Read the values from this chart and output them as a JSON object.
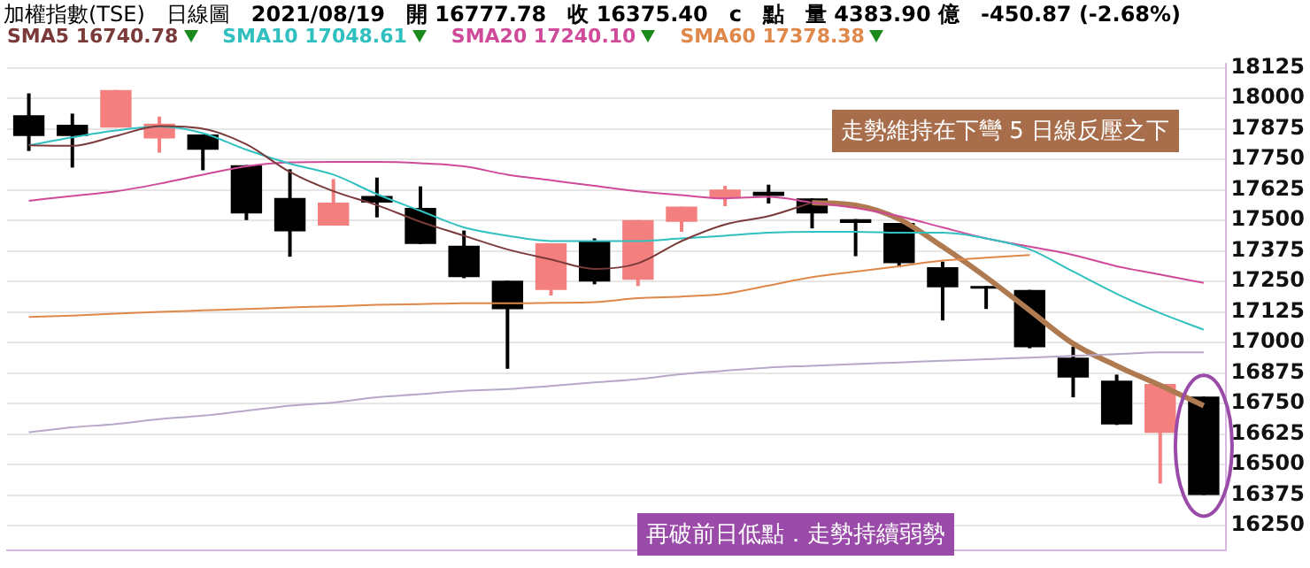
{
  "chart_data": {
    "type": "candlestick",
    "title": "加權指數(TSE)",
    "annotations": [
      "日線圖",
      "2021/08/19",
      "開 16777.78",
      "收 16375.40",
      "c",
      "點",
      "量 4383.90 億",
      "-450.87 (-2.68%)",
      "走勢維持在下彎 5 日線反壓之下",
      "再破前日低點．走勢持續弱勢"
    ],
    "categories": [
      null,
      null,
      null,
      null,
      null,
      null,
      null,
      null,
      null,
      null,
      null,
      null,
      null,
      null,
      null,
      null,
      null,
      null,
      null,
      null,
      null,
      null,
      null,
      null,
      null,
      null,
      null,
      null
    ],
    "ohlc": [
      [
        17930,
        18020,
        17784,
        17845
      ],
      [
        17891,
        17937,
        17716,
        17845
      ],
      [
        17880,
        18034,
        17880,
        18034
      ],
      [
        17835,
        17925,
        17777,
        17896
      ],
      [
        17852,
        17852,
        17705,
        17789
      ],
      [
        17726,
        17726,
        17501,
        17528
      ],
      [
        17592,
        17709,
        17351,
        17455
      ],
      [
        17478,
        17669,
        17478,
        17573
      ],
      [
        17600,
        17675,
        17512,
        17573
      ],
      [
        17551,
        17639,
        17403,
        17403
      ],
      [
        17396,
        17458,
        17263,
        17267
      ],
      [
        17253,
        17253,
        16892,
        17136
      ],
      [
        17215,
        17406,
        17192,
        17406
      ],
      [
        17415,
        17426,
        17238,
        17249
      ],
      [
        17256,
        17501,
        17231,
        17501
      ],
      [
        17494,
        17556,
        17453,
        17556
      ],
      [
        17590,
        17641,
        17558,
        17626
      ],
      [
        17617,
        17646,
        17569,
        17600
      ],
      [
        17590,
        17590,
        17467,
        17528
      ],
      [
        17505,
        17505,
        17353,
        17489
      ],
      [
        17489,
        17489,
        17308,
        17324
      ],
      [
        17308,
        17331,
        17090,
        17226
      ],
      [
        17231,
        17231,
        17137,
        17226
      ],
      [
        17215,
        17215,
        16976,
        16980
      ],
      [
        16938,
        16983,
        16775,
        16856
      ],
      [
        16843,
        16868,
        16662,
        16664
      ],
      [
        16630,
        16830,
        16422,
        16830
      ],
      [
        16777.78,
        16777.78,
        16375.4,
        16375.4
      ]
    ],
    "colors": [
      "#000000",
      "#000000",
      "#f47f7f",
      "#f47f7f",
      "#000000",
      "#000000",
      "#000000",
      "#f47f7f",
      "#000000",
      "#000000",
      "#000000",
      "#000000",
      "#f47f7f",
      "#000000",
      "#f47f7f",
      "#f47f7f",
      "#f47f7f",
      "#000000",
      "#000000",
      "#000000",
      "#000000",
      "#000000",
      "#000000",
      "#000000",
      "#000000",
      "#000000",
      "#f47f7f",
      "#000000"
    ],
    "series": [
      {
        "type": "line",
        "name": "SMA5 16740.78",
        "color": "#7a3a3a",
        "values": [
          17807,
          17805,
          17845,
          17886,
          17875,
          17811,
          17698,
          17619,
          17562,
          17494,
          17437,
          17381,
          17340,
          17301,
          17324,
          17415,
          17483,
          17517,
          17573,
          null,
          null,
          null,
          null,
          null,
          null,
          null,
          null,
          null
        ]
      },
      {
        "type": "line",
        "name": "SMA10 17048.61",
        "color": "#30c0c0",
        "values": [
          17807,
          17840,
          17868,
          17884,
          17857,
          17789,
          17732,
          17687,
          17607,
          17539,
          17471,
          17437,
          17415,
          17415,
          17415,
          17426,
          17437,
          17449,
          17453,
          17453,
          17449,
          17449,
          17426,
          17381,
          17290,
          17199,
          17120,
          17052
        ]
      },
      {
        "type": "line",
        "name": "SMA20 17240.10",
        "color": "#d04a9a",
        "values": [
          17580,
          17600,
          17619,
          17650,
          17687,
          17721,
          17737,
          17739,
          17739,
          17734,
          17721,
          17687,
          17664,
          17641,
          17619,
          17603,
          17590,
          17596,
          17573,
          17551,
          17517,
          17471,
          17426,
          17392,
          17358,
          17312,
          17278,
          17244
        ]
      },
      {
        "type": "line",
        "name": "SMA60 17378.38",
        "color": "#e0884a",
        "values": [
          17104,
          17110,
          17118,
          17125,
          17131,
          17137,
          17143,
          17148,
          17154,
          17157,
          17160,
          17160,
          17162,
          17165,
          17181,
          17188,
          17199,
          17233,
          17267,
          17290,
          17312,
          17335,
          17347,
          17358,
          null,
          null,
          null,
          null
        ]
      },
      {
        "type": "line",
        "color": "#b8a8c8",
        "values": [
          16632,
          16652,
          16666,
          16686,
          16700,
          16720,
          16741,
          16754,
          16775,
          16788,
          16802,
          16809,
          16822,
          16836,
          16850,
          16870,
          16884,
          16897,
          16904,
          16911,
          16918,
          16925,
          16931,
          16938,
          16945,
          16952,
          16959,
          16959
        ]
      },
      {
        "type": "line",
        "color": "#b07a50",
        "values": [
          null,
          null,
          null,
          null,
          null,
          null,
          null,
          null,
          null,
          null,
          null,
          null,
          null,
          null,
          null,
          null,
          null,
          null,
          17573,
          17562,
          17505,
          17392,
          17267,
          17131,
          16995,
          16904,
          16824,
          16741
        ]
      }
    ],
    "ylim": [
      16150,
      18140
    ],
    "yticks": [
      16250,
      16375,
      16500,
      16625,
      16750,
      16875,
      17000,
      17125,
      17250,
      17375,
      17500,
      17625,
      17750,
      17875,
      18000,
      18125
    ],
    "grid": "y",
    "legend": "top left",
    "tick_labels": "y",
    "marker": "none"
  }
}
